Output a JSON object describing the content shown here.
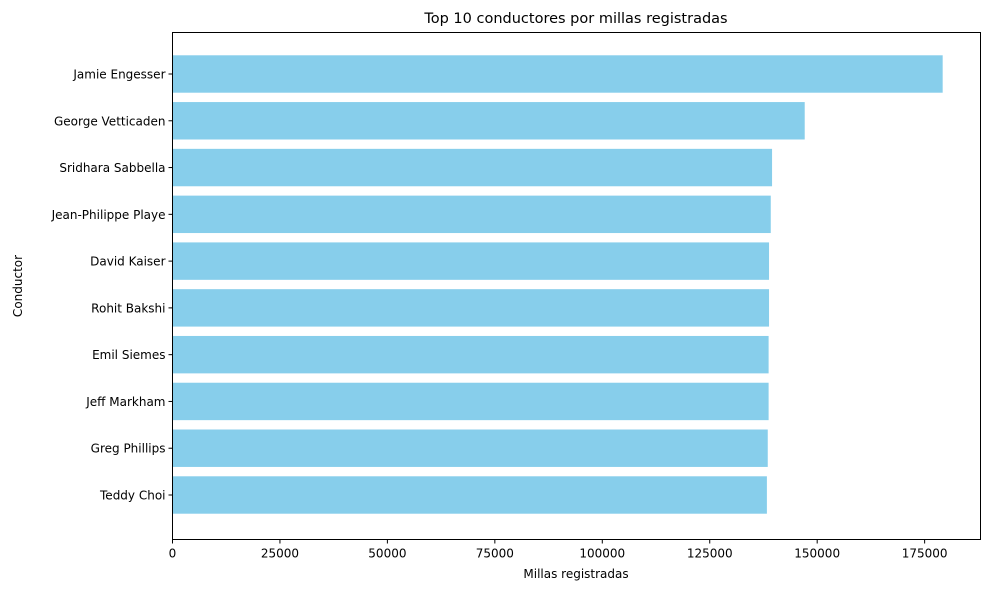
{
  "chart_data": {
    "type": "bar",
    "orientation": "horizontal",
    "title": "Top 10 conductores por millas registradas",
    "xlabel": "Millas registradas",
    "ylabel": "Conductor",
    "xlim": [
      0,
      188000
    ],
    "xticks": [
      0,
      25000,
      50000,
      75000,
      100000,
      125000,
      150000,
      175000
    ],
    "xtick_labels": [
      "0",
      "25000",
      "50000",
      "75000",
      "100000",
      "125000",
      "150000",
      "175000"
    ],
    "categories": [
      "Jamie Engesser",
      "George Vetticaden",
      "Sridhara Sabbella",
      "Jean-Philippe Playe",
      "David Kaiser",
      "Rohit Bakshi",
      "Emil Siemes",
      "Jeff Markham",
      "Greg Phillips",
      "Teddy Choi"
    ],
    "values": [
      179200,
      147100,
      139500,
      139200,
      138800,
      138800,
      138700,
      138700,
      138500,
      138300
    ],
    "bar_color": "#87ceeb",
    "grid": false,
    "legend": "none"
  }
}
